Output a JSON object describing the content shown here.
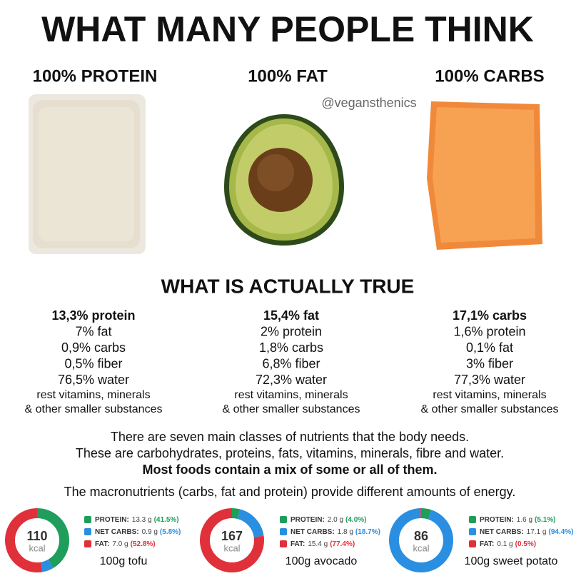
{
  "header": {
    "title": "WHAT MANY PEOPLE THINK",
    "handle": "@vegansthenics",
    "subtitle": "WHAT IS ACTUALLY TRUE"
  },
  "foods": [
    {
      "belief": "100% PROTEIN",
      "facts": [
        "13,3% protein",
        "7% fat",
        "0,9% carbs",
        "0,5% fiber",
        "76,5% water"
      ],
      "rest": [
        "rest vitamins, minerals",
        "& other smaller substances"
      ]
    },
    {
      "belief": "100% FAT",
      "facts": [
        "15,4% fat",
        "2% protein",
        "1,8% carbs",
        "6,8% fiber",
        "72,3% water"
      ],
      "rest": [
        "rest vitamins, minerals",
        "& other smaller substances"
      ]
    },
    {
      "belief": "100% CARBS",
      "facts": [
        "17,1% carbs",
        "1,6% protein",
        "0,1% fat",
        "3% fiber",
        "77,3% water"
      ],
      "rest": [
        "rest vitamins, minerals",
        "& other smaller substances"
      ]
    }
  ],
  "paragraph": [
    "There are seven main classes of nutrients that the body needs.",
    "These are carbohydrates, proteins, fats, vitamins, minerals, fibre and water.",
    "Most foods contain a mix of some or all of them.",
    "The macronutrients (carbs, fat and protein) provide different amounts of energy."
  ],
  "cards": [
    {
      "kcal": 110,
      "unit": "kcal",
      "caption": "100g tofu",
      "macros": [
        {
          "name": "PROTEIN:",
          "amount": "13.3 g",
          "percent": {
            "value": 41.5,
            "label": "(41.5%)"
          },
          "color": "#1e9e5a"
        },
        {
          "name": "NET CARBS:",
          "amount": "0.9 g",
          "percent": {
            "value": 5.8,
            "label": "(5.8%)"
          },
          "color": "#2a8fe0"
        },
        {
          "name": "FAT:",
          "amount": "7.0 g",
          "percent": {
            "value": 52.8,
            "label": "(52.8%)"
          },
          "color": "#e0303a"
        }
      ]
    },
    {
      "kcal": 167,
      "unit": "kcal",
      "caption": "100g avocado",
      "macros": [
        {
          "name": "PROTEIN:",
          "amount": "2.0 g",
          "percent": {
            "value": 4.0,
            "label": "(4.0%)"
          },
          "color": "#1e9e5a"
        },
        {
          "name": "NET CARBS:",
          "amount": "1.8 g",
          "percent": {
            "value": 18.7,
            "label": "(18.7%)"
          },
          "color": "#2a8fe0"
        },
        {
          "name": "FAT:",
          "amount": "15.4 g",
          "percent": {
            "value": 77.4,
            "label": "(77.4%)"
          },
          "color": "#e0303a"
        }
      ]
    },
    {
      "kcal": 86,
      "unit": "kcal",
      "caption": "100g sweet potato",
      "macros": [
        {
          "name": "PROTEIN:",
          "amount": "1.6 g",
          "percent": {
            "value": 5.1,
            "label": "(5.1%)"
          },
          "color": "#1e9e5a"
        },
        {
          "name": "NET CARBS:",
          "amount": "17.1 g",
          "percent": {
            "value": 94.4,
            "label": "(94.4%)"
          },
          "color": "#2a8fe0"
        },
        {
          "name": "FAT:",
          "amount": "0.1 g",
          "percent": {
            "value": 0.5,
            "label": "(0.5%)"
          },
          "color": "#e0303a"
        }
      ]
    }
  ]
}
